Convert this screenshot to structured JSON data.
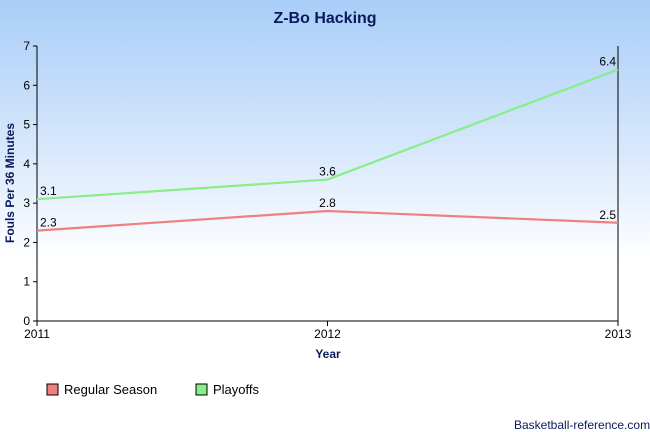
{
  "chart_data": {
    "type": "line",
    "title": "Z-Bo Hacking",
    "xlabel": "Year",
    "ylabel": "Fouls Per 36 Minutes",
    "x": [
      "2011",
      "2012",
      "2013"
    ],
    "ylim": [
      0,
      7
    ],
    "yticks": [
      "0",
      "1",
      "2",
      "3",
      "4",
      "5",
      "6",
      "7"
    ],
    "grid": false,
    "legend_position": "bottom-left",
    "series": [
      {
        "name": "Regular Season",
        "values": [
          2.3,
          2.8,
          2.5
        ],
        "labels": [
          "2.3",
          "2.8",
          "2.5"
        ],
        "color": "#f08080"
      },
      {
        "name": "Playoffs",
        "values": [
          3.1,
          3.6,
          6.4
        ],
        "labels": [
          "3.1",
          "3.6",
          "6.4"
        ],
        "color": "#88ee88"
      }
    ]
  },
  "credit": "Basketball-reference.com"
}
